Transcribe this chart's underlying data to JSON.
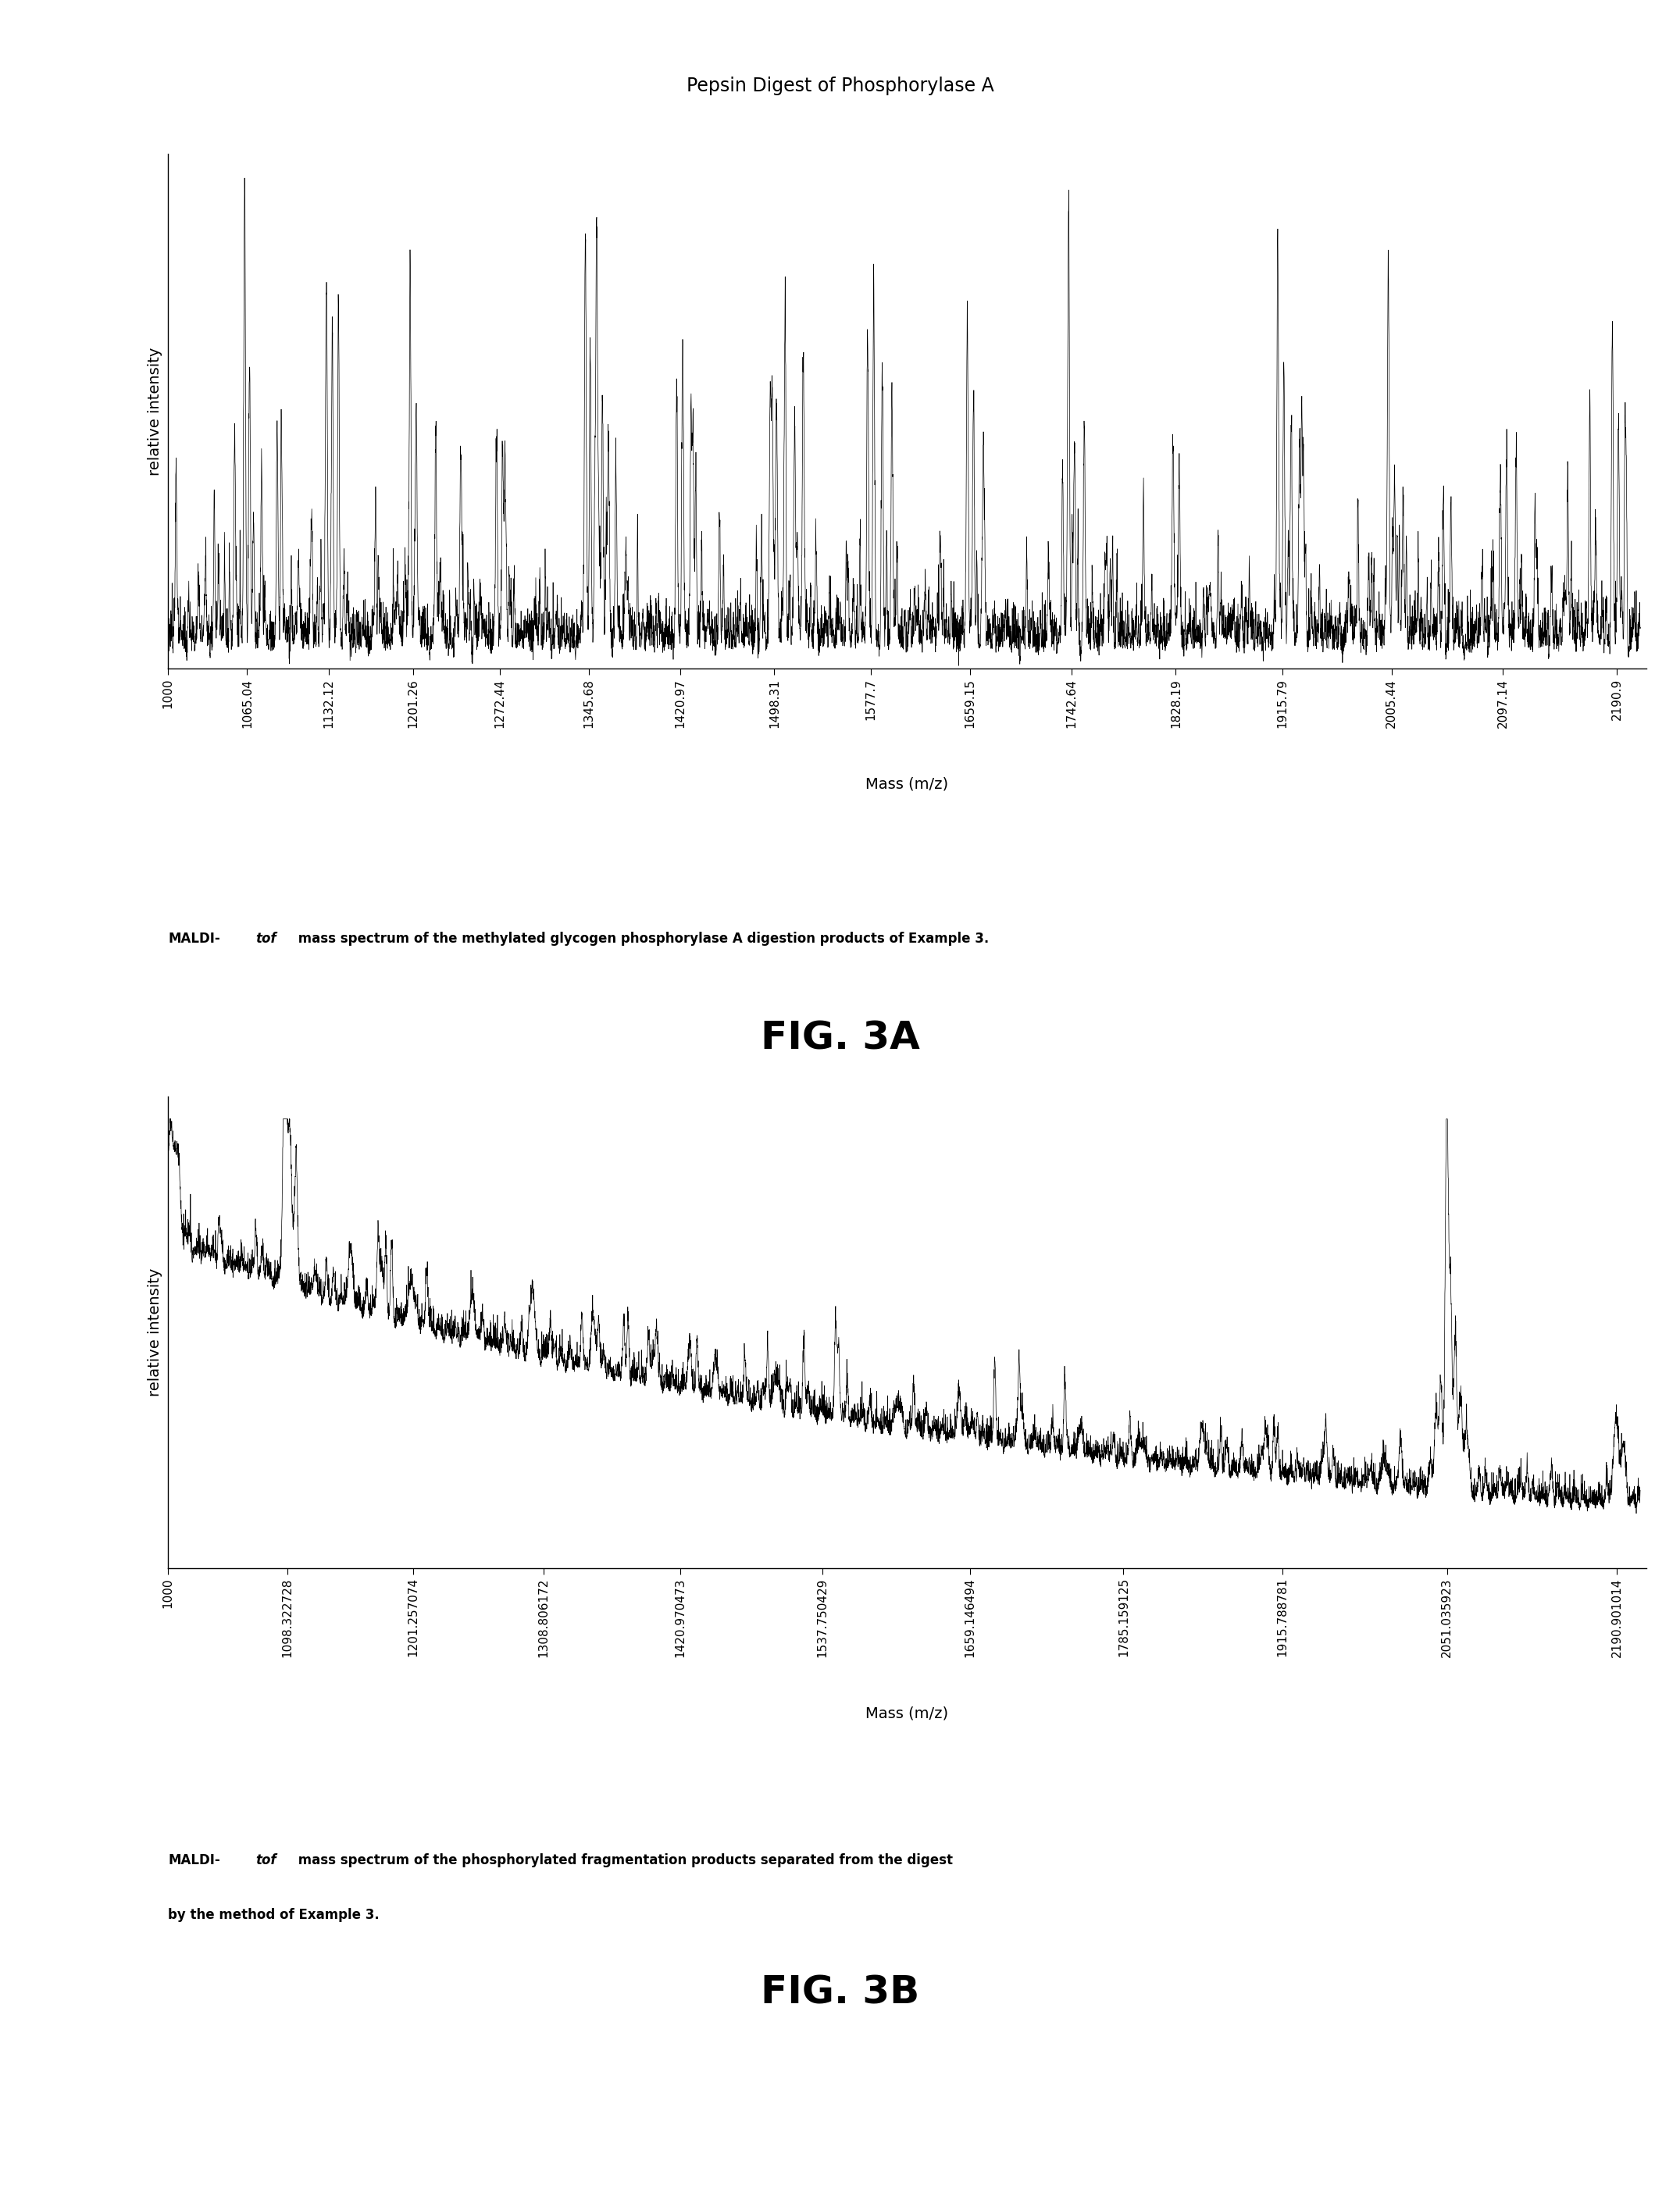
{
  "title_3a": "Pepsin Digest of Phosphorylase A",
  "xlabel": "Mass (m/z)",
  "ylabel": "relative intensity",
  "fig3a_caption_normal": "MALDI-",
  "fig3a_caption_italic": "tof",
  "fig3a_caption_rest": " mass spectrum of the methylated glycogen phosphorylase A digestion products of Example 3.",
  "fig3a_label": "FIG. 3A",
  "fig3b_caption_normal": "MALDI-",
  "fig3b_caption_italic": "tof",
  "fig3b_caption_rest1": " mass spectrum of the phosphorylated fragmentation products separated from the digest",
  "fig3b_caption_rest2": "by the method of Example 3.",
  "fig3b_label": "FIG. 3B",
  "fig3a_xtick_labels": [
    "1000",
    "1065.04",
    "1132.12",
    "1201.26",
    "1272.44",
    "1345.68",
    "1420.97",
    "1498.31",
    "1577.7",
    "1659.15",
    "1742.64",
    "1828.19",
    "1915.79",
    "2005.44",
    "2097.14",
    "2190.9"
  ],
  "fig3a_xtick_vals": [
    1000,
    1065.04,
    1132.12,
    1201.26,
    1272.44,
    1345.68,
    1420.97,
    1498.31,
    1577.7,
    1659.15,
    1742.64,
    1828.19,
    1915.79,
    2005.44,
    2097.14,
    2190.9
  ],
  "fig3b_xtick_labels": [
    "1000",
    "1098.322728",
    "1201.257074",
    "1308.806172",
    "1420.970473",
    "1537.750429",
    "1659.146494",
    "1785.159125",
    "1915.788781",
    "2051.035923",
    "2190.901014"
  ],
  "fig3b_xtick_vals": [
    1000,
    1098.322728,
    1201.257074,
    1308.806172,
    1420.970473,
    1537.750429,
    1659.146494,
    1785.159125,
    1915.788781,
    2051.035923,
    2190.901014
  ],
  "background_color": "#ffffff",
  "spectrum_color": "#000000"
}
